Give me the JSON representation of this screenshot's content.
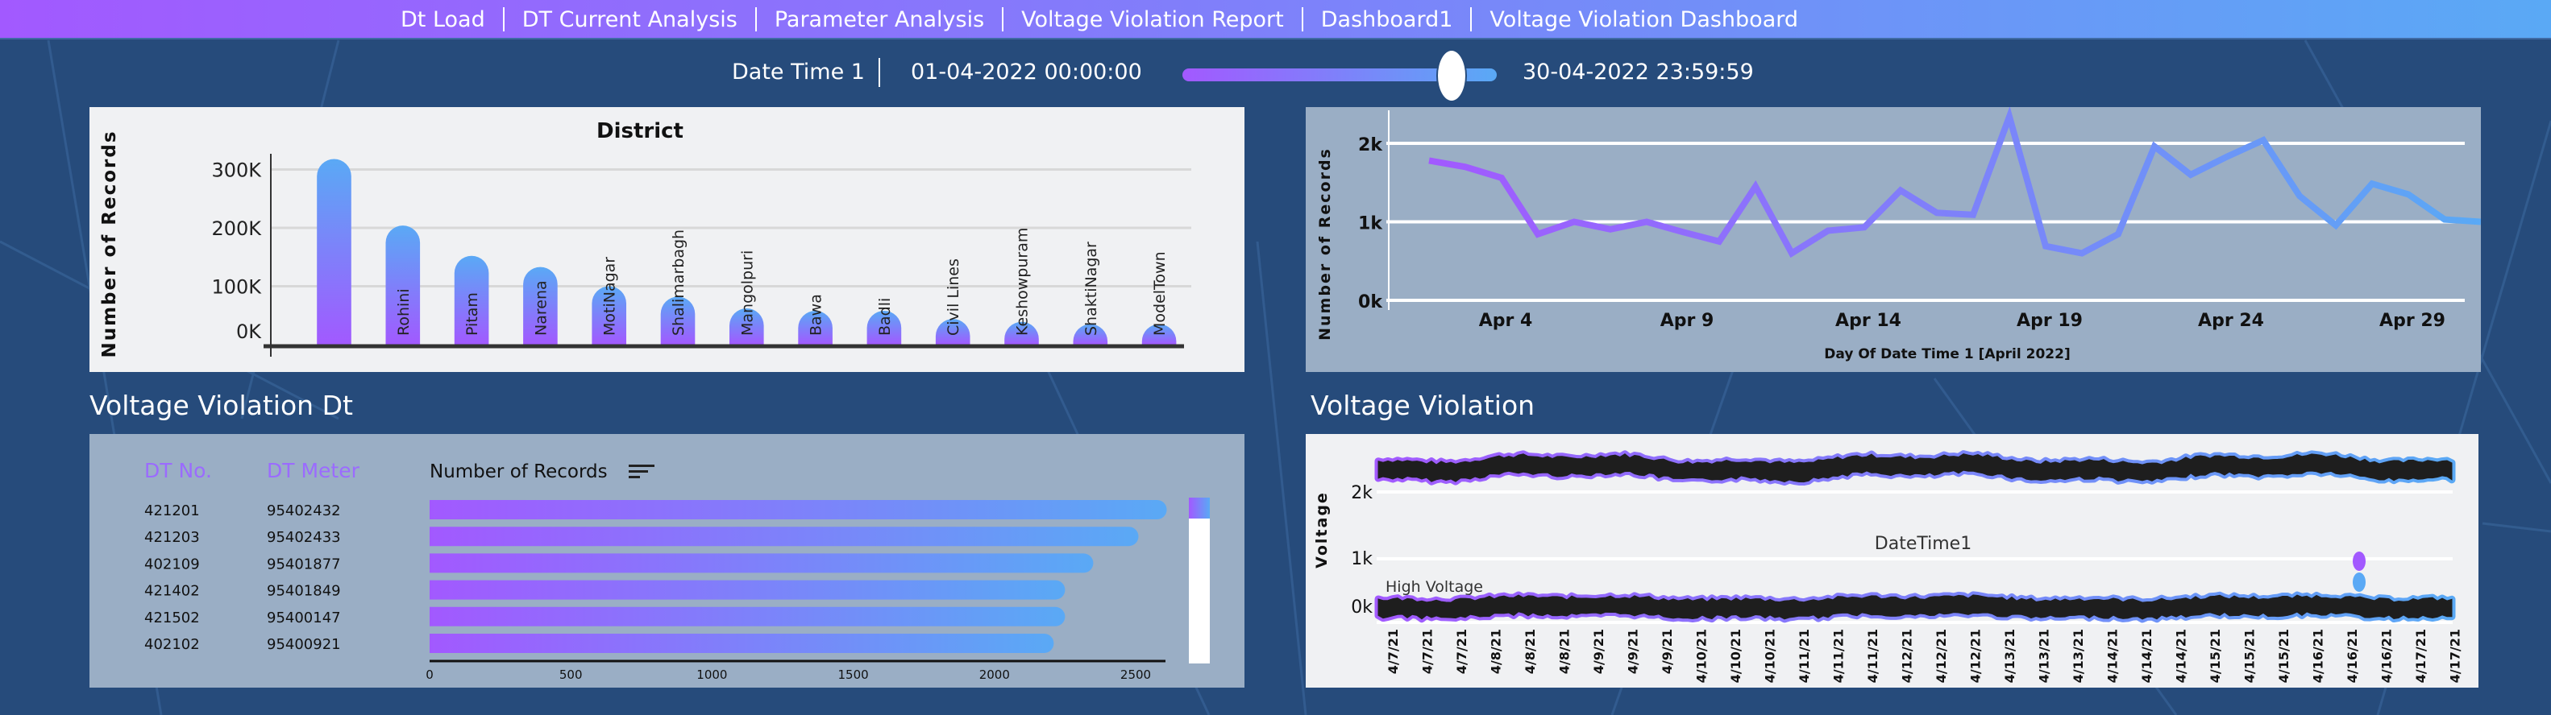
{
  "nav": {
    "items": [
      "Dt Load",
      "DT Current Analysis",
      "Parameter Analysis",
      "Voltage Violation Report",
      "Dashboard1",
      "Voltage Violation Dashboard"
    ]
  },
  "slider": {
    "label": "Date Time 1",
    "start": "01-04-2022 00:00:00",
    "end": "30-04-2022 23:59:59",
    "handle_position_pct": 85
  },
  "colors": {
    "background": "#264b7b",
    "accent_start": "#a259ff",
    "accent_end": "#5aa9f5",
    "panel_light": "#f0f1f3",
    "panel_steel": "#9aaec5",
    "dt_header": "#9b6bff"
  },
  "district_chart": {
    "chart_data": {
      "type": "bar",
      "title": "District",
      "ylabel": "Number of Records",
      "xlabel": "",
      "categories": [
        "",
        "Rohini",
        "Pitam",
        "Narena",
        "MotiNagar",
        "Shalimarbagh",
        "Mangolpuri",
        "Bawa",
        "Badli",
        "Civil Lines",
        "Keshowpuram",
        "ShaktiNagar",
        "ModelTown"
      ],
      "values": [
        318000,
        204000,
        152000,
        133000,
        100000,
        82000,
        62000,
        58000,
        58000,
        44000,
        39000,
        35000,
        35000
      ],
      "yticks": [
        {
          "v": 0,
          "label": "0K"
        },
        {
          "v": 100000,
          "label": "100K"
        },
        {
          "v": 200000,
          "label": "200K"
        },
        {
          "v": 300000,
          "label": "300K"
        }
      ],
      "ylim": [
        0,
        330000
      ],
      "grid": true
    }
  },
  "daily_chart": {
    "chart_data": {
      "type": "line",
      "ylabel": "Number of Records",
      "xlabel": "Day Of Date Time 1 [April 2022]",
      "x": [
        1,
        2,
        3,
        4,
        5,
        6,
        7,
        8,
        9,
        10,
        11,
        12,
        13,
        14,
        15,
        16,
        17,
        18,
        19,
        20,
        21,
        22,
        23,
        24,
        25,
        26,
        27,
        28,
        29,
        30
      ],
      "values": [
        1780,
        1700,
        1560,
        843,
        1000,
        905,
        1000,
        870,
        750,
        1450,
        600,
        887,
        930,
        1400,
        1115,
        1090,
        2340,
        690,
        600,
        843,
        1960,
        1600,
        1830,
        2040,
        1330,
        955,
        1485,
        1350,
        1030,
        1000
      ],
      "xticks": [
        {
          "v": 4,
          "label": "Apr 4"
        },
        {
          "v": 9,
          "label": "Apr 9"
        },
        {
          "v": 14,
          "label": "Apr 14"
        },
        {
          "v": 19,
          "label": "Apr 19"
        },
        {
          "v": 24,
          "label": "Apr 24"
        },
        {
          "v": 29,
          "label": "Apr 29"
        }
      ],
      "yticks": [
        {
          "v": 0,
          "label": "0k"
        },
        {
          "v": 1000,
          "label": "1k"
        },
        {
          "v": 2000,
          "label": "2k"
        }
      ],
      "ylim": [
        0,
        2400
      ],
      "grid": true
    }
  },
  "dt_section": {
    "title": "Voltage Violation Dt",
    "headers": {
      "dt_no": "DT No.",
      "dt_meter": "DT Meter",
      "records": "Number of Records"
    },
    "chart_data": {
      "type": "bar",
      "orientation": "horizontal",
      "rows": [
        {
          "dt_no": "421201",
          "dt_meter": "95402432",
          "value": 2610
        },
        {
          "dt_no": "421203",
          "dt_meter": "95402433",
          "value": 2510
        },
        {
          "dt_no": "402109",
          "dt_meter": "95401877",
          "value": 2350
        },
        {
          "dt_no": "421402",
          "dt_meter": "95401849",
          "value": 2250
        },
        {
          "dt_no": "421502",
          "dt_meter": "95400147",
          "value": 2250
        },
        {
          "dt_no": "402102",
          "dt_meter": "95400921",
          "value": 2210
        }
      ],
      "xticks": [
        "0",
        "500",
        "1000",
        "1500",
        "2000",
        "2500"
      ],
      "xlim": [
        0,
        2500
      ]
    }
  },
  "voltage_section": {
    "title": "Voltage Violation",
    "chart_data": {
      "type": "line",
      "ylabel": "Voltage",
      "subtitle": "DateTime1",
      "legend_label": "High Voltage",
      "yticks": [
        {
          "v": 0,
          "label": "0k"
        },
        {
          "v": 1000,
          "label": "1k"
        },
        {
          "v": 2000,
          "label": "2k"
        }
      ],
      "series_levels_approx": [
        2300,
        0
      ],
      "xticks": [
        "4/7/21",
        "4/7/21",
        "4/7/21",
        "4/8/21",
        "4/8/21",
        "4/8/21",
        "4/9/21",
        "4/9/21",
        "4/9/21",
        "4/10/21",
        "4/10/21",
        "4/10/21",
        "4/11/21",
        "4/11/21",
        "4/11/21",
        "4/12/21",
        "4/12/21",
        "4/12/21",
        "4/13/21",
        "4/13/21",
        "4/13/21",
        "4/14/21",
        "4/14/21",
        "4/14/21",
        "4/15/21",
        "4/15/21",
        "4/15/21",
        "4/16/21",
        "4/16/21",
        "4/16/21",
        "4/17/21",
        "4/17/21"
      ]
    }
  }
}
